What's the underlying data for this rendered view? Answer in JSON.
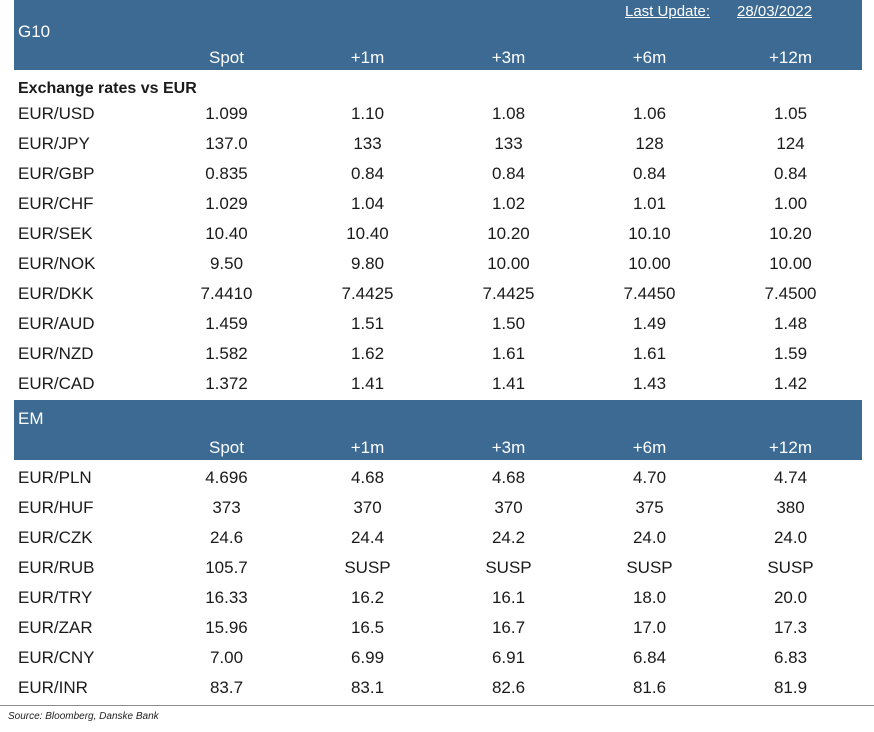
{
  "last_update": {
    "label": "Last Update:",
    "date": "28/03/2022"
  },
  "columns": [
    "Spot",
    "+1m",
    "+3m",
    "+6m",
    "+12m"
  ],
  "g10": {
    "group_label": "G10",
    "section_title": "Exchange rates vs EUR",
    "rows": [
      {
        "pair": "EUR/USD",
        "values": [
          "1.099",
          "1.10",
          "1.08",
          "1.06",
          "1.05"
        ]
      },
      {
        "pair": "EUR/JPY",
        "values": [
          "137.0",
          "133",
          "133",
          "128",
          "124"
        ]
      },
      {
        "pair": "EUR/GBP",
        "values": [
          "0.835",
          "0.84",
          "0.84",
          "0.84",
          "0.84"
        ]
      },
      {
        "pair": "EUR/CHF",
        "values": [
          "1.029",
          "1.04",
          "1.02",
          "1.01",
          "1.00"
        ]
      },
      {
        "pair": "EUR/SEK",
        "values": [
          "10.40",
          "10.40",
          "10.20",
          "10.10",
          "10.20"
        ]
      },
      {
        "pair": "EUR/NOK",
        "values": [
          "9.50",
          "9.80",
          "10.00",
          "10.00",
          "10.00"
        ]
      },
      {
        "pair": "EUR/DKK",
        "values": [
          "7.4410",
          "7.4425",
          "7.4425",
          "7.4450",
          "7.4500"
        ]
      },
      {
        "pair": "EUR/AUD",
        "values": [
          "1.459",
          "1.51",
          "1.50",
          "1.49",
          "1.48"
        ]
      },
      {
        "pair": "EUR/NZD",
        "values": [
          "1.582",
          "1.62",
          "1.61",
          "1.61",
          "1.59"
        ]
      },
      {
        "pair": "EUR/CAD",
        "values": [
          "1.372",
          "1.41",
          "1.41",
          "1.43",
          "1.42"
        ]
      }
    ]
  },
  "em": {
    "group_label": "EM",
    "rows": [
      {
        "pair": "EUR/PLN",
        "values": [
          "4.696",
          "4.68",
          "4.68",
          "4.70",
          "4.74"
        ]
      },
      {
        "pair": "EUR/HUF",
        "values": [
          "373",
          "370",
          "370",
          "375",
          "380"
        ]
      },
      {
        "pair": "EUR/CZK",
        "values": [
          "24.6",
          "24.4",
          "24.2",
          "24.0",
          "24.0"
        ]
      },
      {
        "pair": "EUR/RUB",
        "values": [
          "105.7",
          "SUSP",
          "SUSP",
          "SUSP",
          "SUSP"
        ]
      },
      {
        "pair": "EUR/TRY",
        "values": [
          "16.33",
          "16.2",
          "16.1",
          "18.0",
          "20.0"
        ]
      },
      {
        "pair": "EUR/ZAR",
        "values": [
          "15.96",
          "16.5",
          "16.7",
          "17.0",
          "17.3"
        ]
      },
      {
        "pair": "EUR/CNY",
        "values": [
          "7.00",
          "6.99",
          "6.91",
          "6.84",
          "6.83"
        ]
      },
      {
        "pair": "EUR/INR",
        "values": [
          "83.7",
          "83.1",
          "82.6",
          "81.6",
          "81.9"
        ]
      }
    ]
  },
  "source": "Source: Bloomberg, Danske Bank",
  "colors": {
    "header_band": "#3c6a93",
    "header_text": "#ffffff"
  }
}
